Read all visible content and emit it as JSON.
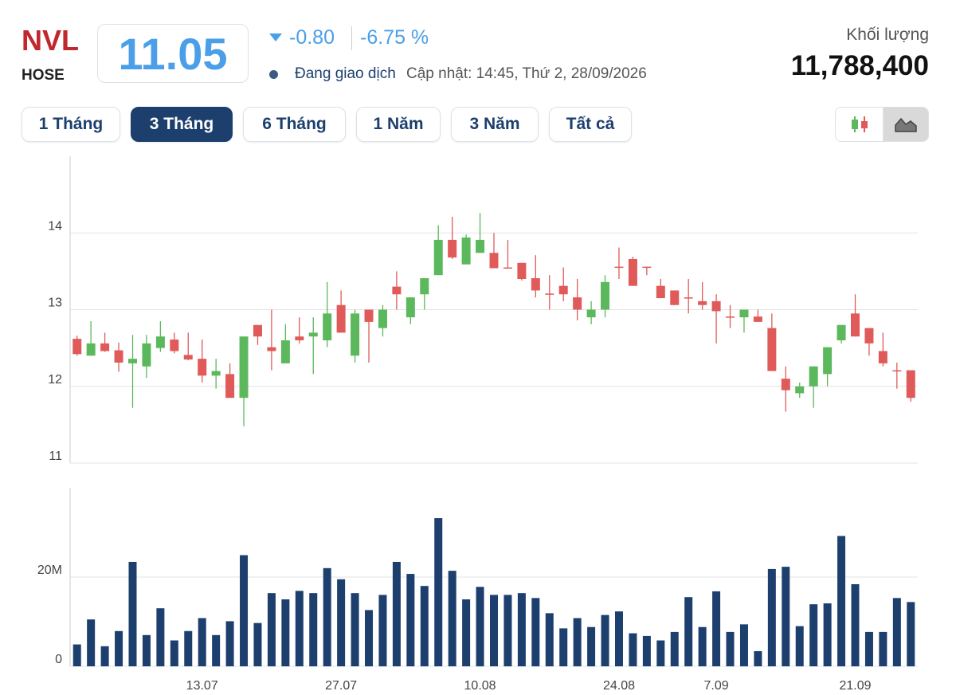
{
  "header": {
    "symbol": "NVL",
    "exchange": "HOSE",
    "price": "11.05",
    "change": "-0.80",
    "change_percent": "-6.75 %",
    "status": "Đang giao dịch",
    "updated": "Cập nhật: 14:45, Thứ 2, 28/09/2026",
    "volume_label": "Khối lượng",
    "volume": "11,788,400"
  },
  "range_buttons": {
    "labels": [
      "1 Tháng",
      "3 Tháng",
      "6 Tháng",
      "1 Năm",
      "3 Năm",
      "Tất cả"
    ],
    "active": 1
  },
  "chart_data": [
    {
      "type": "candlestick",
      "up_color": "#5cb85c",
      "down_color": "#e05a5a",
      "ylim": [
        11,
        15
      ],
      "yticks": [
        11,
        12,
        13,
        14
      ],
      "grid": true,
      "open": [
        12.62,
        12.4,
        12.56,
        12.47,
        12.3,
        12.26,
        12.5,
        12.61,
        12.41,
        12.36,
        12.14,
        12.16,
        11.85,
        12.8,
        12.51,
        12.3,
        12.65,
        12.65,
        12.6,
        13.06,
        12.4,
        13.0,
        12.76,
        13.3,
        12.9,
        13.2,
        13.45,
        13.91,
        13.59,
        13.74,
        13.74,
        13.55,
        13.61,
        13.41,
        13.21,
        13.31,
        13.16,
        12.9,
        13.0,
        13.56,
        13.66,
        13.56,
        13.31,
        13.25,
        13.16,
        13.11,
        13.11,
        12.91,
        12.9,
        12.91,
        12.76,
        12.1,
        11.91,
        12.0,
        12.16,
        12.6,
        12.95,
        12.76,
        12.46,
        12.21,
        12.21
      ],
      "high": [
        12.66,
        12.85,
        12.7,
        12.57,
        12.67,
        12.67,
        12.85,
        12.7,
        12.7,
        12.61,
        12.36,
        12.3,
        12.65,
        12.8,
        13.0,
        12.81,
        12.9,
        12.9,
        13.36,
        13.25,
        13.0,
        13.0,
        13.06,
        13.5,
        13.16,
        13.41,
        14.1,
        14.21,
        13.98,
        14.26,
        14.0,
        13.91,
        13.61,
        13.71,
        13.45,
        13.55,
        13.4,
        13.11,
        13.45,
        13.81,
        13.69,
        13.56,
        13.4,
        13.25,
        13.4,
        13.36,
        13.2,
        13.06,
        13.0,
        13.0,
        12.95,
        12.26,
        12.05,
        12.26,
        12.51,
        12.8,
        13.2,
        12.76,
        12.7,
        12.31,
        12.21
      ],
      "low": [
        12.4,
        12.4,
        12.45,
        12.19,
        11.72,
        12.11,
        12.45,
        12.43,
        12.34,
        12.05,
        11.97,
        11.85,
        11.48,
        12.54,
        12.21,
        12.3,
        12.56,
        12.16,
        12.51,
        12.7,
        12.31,
        12.31,
        12.65,
        13.0,
        12.81,
        13.0,
        13.45,
        13.66,
        13.59,
        13.74,
        13.54,
        13.54,
        13.38,
        13.16,
        13.0,
        13.11,
        12.86,
        12.81,
        12.9,
        13.4,
        13.31,
        13.45,
        13.15,
        13.06,
        12.95,
        13.0,
        12.56,
        12.76,
        12.7,
        12.84,
        12.2,
        11.67,
        11.85,
        11.72,
        12.0,
        12.56,
        12.65,
        12.4,
        12.26,
        11.97,
        11.8
      ],
      "close": [
        12.42,
        12.56,
        12.46,
        12.31,
        12.36,
        12.56,
        12.65,
        12.46,
        12.35,
        12.14,
        12.2,
        11.85,
        12.65,
        12.65,
        12.46,
        12.6,
        12.6,
        12.7,
        12.95,
        12.7,
        12.95,
        12.84,
        13.0,
        13.2,
        13.16,
        13.41,
        13.91,
        13.68,
        13.94,
        13.91,
        13.54,
        13.54,
        13.4,
        13.25,
        13.2,
        13.2,
        13.0,
        13.0,
        13.36,
        13.55,
        13.31,
        13.55,
        13.15,
        13.06,
        13.15,
        13.06,
        12.98,
        12.9,
        13.0,
        12.84,
        12.2,
        11.95,
        12.0,
        12.26,
        12.51,
        12.8,
        12.65,
        12.56,
        12.3,
        12.2,
        11.85
      ]
    },
    {
      "type": "bar",
      "color": "#1c3f6e",
      "ylim": [
        0,
        40000000
      ],
      "yticks": [
        0,
        {
          "value": 20000000,
          "label": "20M"
        }
      ],
      "grid": true,
      "categories": [
        null,
        null,
        null,
        null,
        null,
        null,
        null,
        null,
        null,
        "13.07",
        null,
        null,
        null,
        null,
        null,
        null,
        null,
        null,
        null,
        "27.07",
        null,
        null,
        null,
        null,
        null,
        null,
        null,
        null,
        null,
        "10.08",
        null,
        null,
        null,
        null,
        null,
        null,
        null,
        null,
        null,
        "24.08",
        null,
        null,
        null,
        null,
        null,
        null,
        "7.09",
        null,
        null,
        null,
        null,
        null,
        null,
        null,
        null,
        null,
        "21.09",
        null,
        null,
        null,
        null
      ],
      "values": [
        4900000,
        10500000,
        4500000,
        7900000,
        23400000,
        7000000,
        13000000,
        5800000,
        7900000,
        10800000,
        7000000,
        10100000,
        24900000,
        9700000,
        16400000,
        15000000,
        16900000,
        16400000,
        22000000,
        19500000,
        16400000,
        12600000,
        16000000,
        23400000,
        20700000,
        18000000,
        33200000,
        21400000,
        15000000,
        17800000,
        16000000,
        16000000,
        16400000,
        15300000,
        11900000,
        8500000,
        10800000,
        8800000,
        11500000,
        12300000,
        7400000,
        6800000,
        5800000,
        7700000,
        15500000,
        8800000,
        16800000,
        7700000,
        9400000,
        3400000,
        21800000,
        22300000,
        9000000,
        13900000,
        14100000,
        29200000,
        18400000,
        7700000,
        7700000,
        15300000,
        14400000
      ]
    }
  ]
}
